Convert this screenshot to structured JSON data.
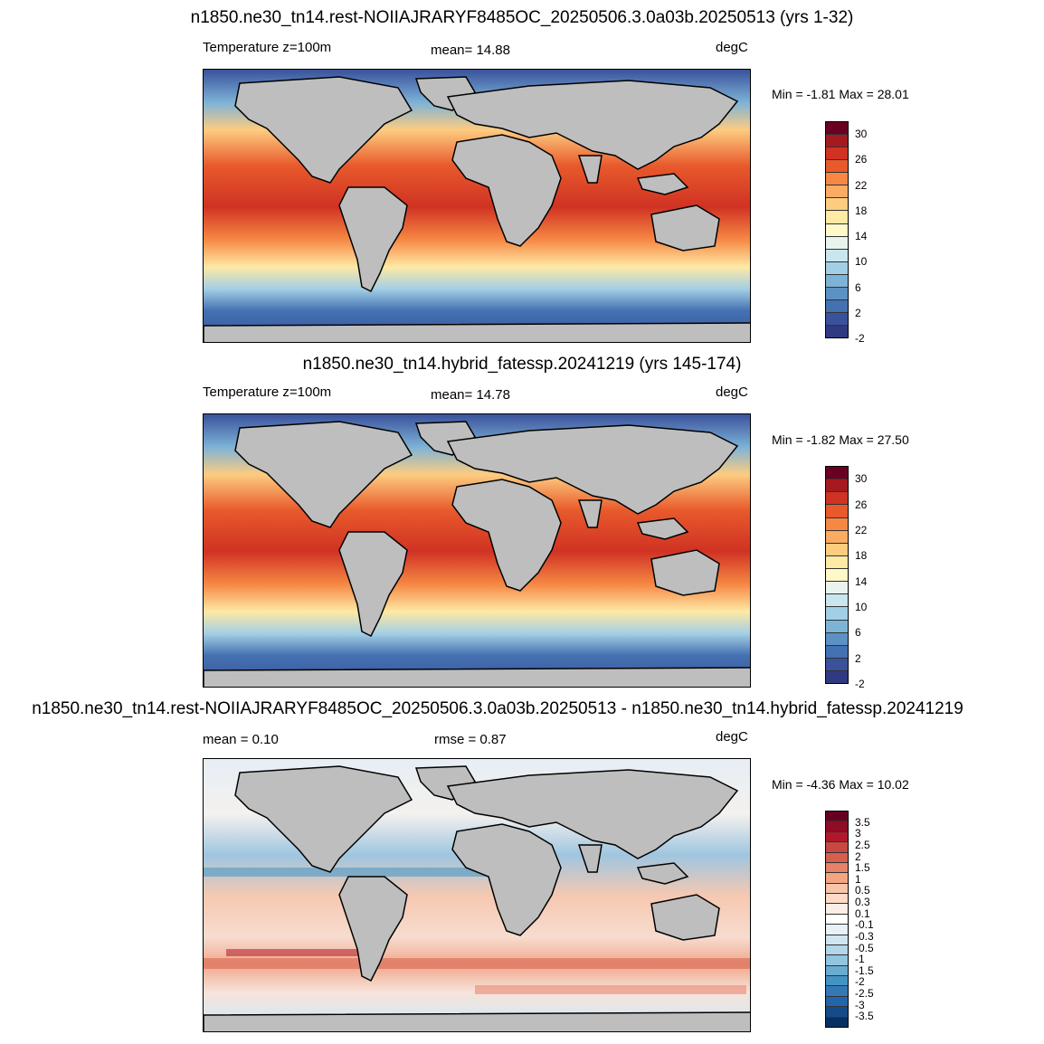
{
  "panels": [
    {
      "title": "n1850.ne30_tn14.rest-NOIIAJRARYF8485OC_20250506.3.0a03b.20250513 (yrs 1-32)",
      "left_label": "Temperature z=100m",
      "mid_label": "mean=  14.88",
      "units": "degC",
      "minmax": "Min =  -1.81 Max =  28.01",
      "colorbar_ticks": [
        "30",
        "26",
        "22",
        "18",
        "14",
        "10",
        "6",
        "2",
        "-2"
      ],
      "colorbar_colors": [
        "#6a0022",
        "#a41a20",
        "#d03223",
        "#e85a2c",
        "#f68844",
        "#fbac62",
        "#fdcc80",
        "#fee9a5",
        "#fff8c9",
        "#eaf4ee",
        "#c9e6ef",
        "#a3cfe6",
        "#7db3d7",
        "#5d91c4",
        "#4471b1",
        "#3a529c",
        "#2f3a80"
      ]
    },
    {
      "title": "n1850.ne30_tn14.hybrid_fatessp.20241219 (yrs 145-174)",
      "left_label": "Temperature z=100m",
      "mid_label": "mean=  14.78",
      "units": "degC",
      "minmax": "Min =  -1.82 Max =  27.50",
      "colorbar_ticks": [
        "30",
        "26",
        "22",
        "18",
        "14",
        "10",
        "6",
        "2",
        "-2"
      ],
      "colorbar_colors": [
        "#6a0022",
        "#a41a20",
        "#d03223",
        "#e85a2c",
        "#f68844",
        "#fbac62",
        "#fdcc80",
        "#fee9a5",
        "#fff8c9",
        "#eaf4ee",
        "#c9e6ef",
        "#a3cfe6",
        "#7db3d7",
        "#5d91c4",
        "#4471b1",
        "#3a529c",
        "#2f3a80"
      ]
    },
    {
      "title": "n1850.ne30_tn14.rest-NOIIAJRARYF8485OC_20250506.3.0a03b.20250513 - n1850.ne30_tn14.hybrid_fatessp.20241219",
      "left_label": "mean =   0.10",
      "mid_label": "rmse =   0.87",
      "units": "degC",
      "minmax": "Min =  -4.36 Max =  10.02",
      "colorbar_ticks": [
        "3.5",
        "3",
        "2.5",
        "2",
        "1.5",
        "1",
        "0.5",
        "0.3",
        "0.1",
        "-0.1",
        "-0.3",
        "-0.5",
        "-1",
        "-1.5",
        "-2",
        "-2.5",
        "-3",
        "-3.5"
      ],
      "colorbar_colors": [
        "#67001f",
        "#8e0c25",
        "#b2182b",
        "#c94741",
        "#d6604d",
        "#e58267",
        "#f4a582",
        "#f8c5ab",
        "#fddbc7",
        "#fbeee6",
        "#ffffff",
        "#e8f1f7",
        "#d1e5f0",
        "#b5d5e8",
        "#92c5de",
        "#6aacd0",
        "#4393c3",
        "#3479b5",
        "#2166ac",
        "#144c8a",
        "#053061"
      ]
    }
  ],
  "colors": {
    "land": "#bebebe",
    "coast": "#000000"
  }
}
